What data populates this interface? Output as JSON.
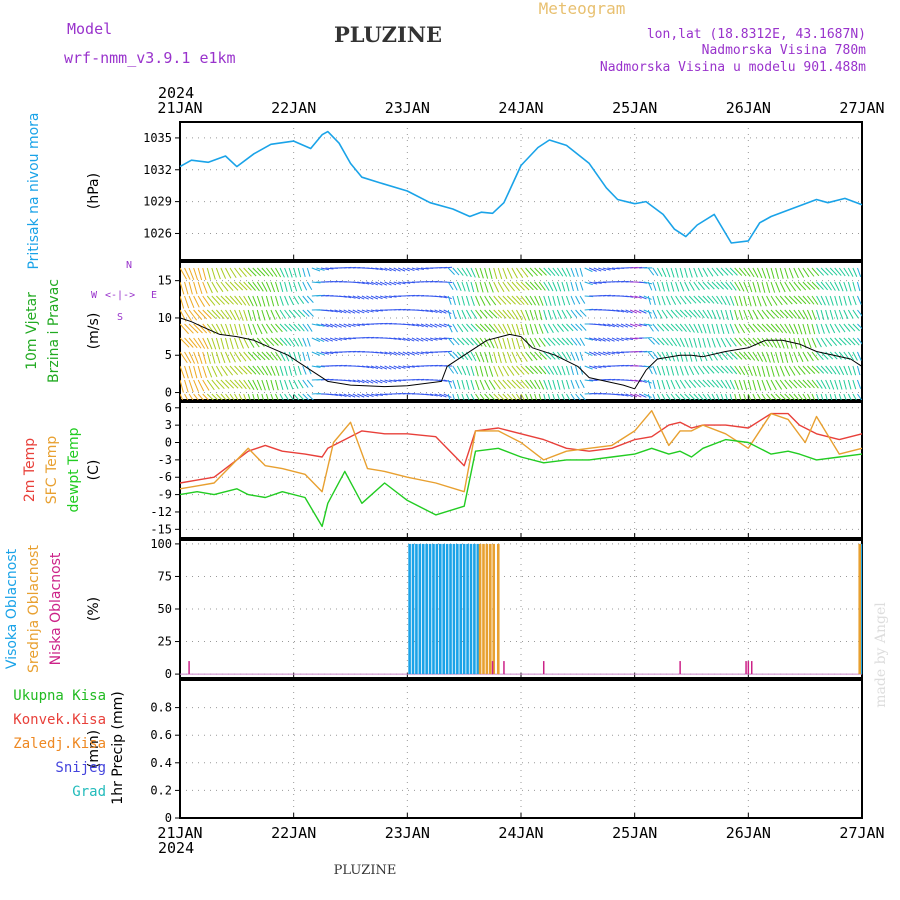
{
  "header": {
    "model_label": "Model",
    "model_name": "wrf-nmm_v3.9.1  e1km",
    "station": "PLUZINE",
    "meteogram": "Meteogram",
    "lonlat": "lon,lat (18.8312E, 43.1687N)",
    "elevation": "Nadmorska Visina 780m",
    "model_elevation": "Nadmorska Visina u modelu 901.488m",
    "year": "2024",
    "footer_station": "PLUZINE",
    "watermark": "made by Angel"
  },
  "colors": {
    "pressure": "#1aa3e8",
    "temp2m": "#e8403a",
    "sfc_temp": "#e8a030",
    "dewpt": "#22cc22",
    "high_cloud": "#1aa3e8",
    "mid_cloud": "#e8a030",
    "low_cloud": "#cc2288",
    "wind_title": "#22aa22",
    "compass": "#9933cc"
  },
  "chart_data": [
    {
      "type": "line",
      "panel": "pressure",
      "x_ticks": [
        "21JAN",
        "22JAN",
        "23JAN",
        "24JAN",
        "25JAN",
        "26JAN",
        "27JAN"
      ],
      "ylabel_lines": [
        "Pritisak na nivou mora"
      ],
      "unit": "(hPa)",
      "ylim": [
        1023.5,
        1036.5
      ],
      "y_ticks": [
        1026,
        1029,
        1032,
        1035
      ],
      "grid": true,
      "series": [
        {
          "name": "Pritisak na nivou mora",
          "x_days": [
            0,
            0.1,
            0.25,
            0.4,
            0.5,
            0.65,
            0.8,
            1.0,
            1.15,
            1.25,
            1.3,
            1.4,
            1.5,
            1.6,
            1.75,
            2.0,
            2.2,
            2.4,
            2.55,
            2.65,
            2.75,
            2.85,
            3.0,
            3.15,
            3.25,
            3.4,
            3.6,
            3.75,
            3.85,
            4.0,
            4.1,
            4.25,
            4.35,
            4.45,
            4.55,
            4.7,
            4.85,
            5.0,
            5.1,
            5.2,
            5.35,
            5.5,
            5.6,
            5.7,
            5.85,
            6.0
          ],
          "values": [
            1032.3,
            1032.9,
            1032.7,
            1033.3,
            1032.3,
            1033.5,
            1034.4,
            1034.7,
            1034.0,
            1035.3,
            1035.6,
            1034.5,
            1032.6,
            1031.3,
            1030.8,
            1030.0,
            1028.9,
            1028.3,
            1027.6,
            1028.0,
            1027.9,
            1028.9,
            1032.4,
            1034.1,
            1034.8,
            1034.3,
            1032.6,
            1030.3,
            1029.2,
            1028.8,
            1029.0,
            1027.8,
            1026.4,
            1025.7,
            1026.8,
            1027.8,
            1025.1,
            1025.3,
            1027.0,
            1027.6,
            1028.2,
            1028.8,
            1029.2,
            1028.9,
            1029.3,
            1028.7
          ]
        }
      ]
    },
    {
      "type": "line",
      "panel": "wind",
      "ylabel_lines": [
        "10m Vjetar",
        "Brzina i Pravac"
      ],
      "unit": "(m/s)",
      "ylim": [
        -1,
        17.5
      ],
      "y_ticks": [
        0,
        5,
        10,
        15
      ],
      "compass": {
        "north": "N",
        "east": "E",
        "west": "W",
        "south": "S",
        "arrow": "<-|->"
      },
      "grid": true,
      "series": [
        {
          "name": "10m Vjetar",
          "x_days": [
            0,
            0.1,
            0.2,
            0.35,
            0.5,
            0.65,
            0.8,
            0.95,
            1.0,
            1.1,
            1.25,
            1.3,
            1.5,
            1.8,
            2.0,
            2.3,
            2.35,
            2.5,
            2.7,
            2.9,
            3.0,
            3.1,
            3.3,
            3.5,
            3.6,
            3.75,
            3.9,
            4.0,
            4.1,
            4.2,
            4.4,
            4.5,
            4.6,
            4.8,
            5.0,
            5.15,
            5.3,
            5.45,
            5.6,
            5.75,
            5.9,
            6.0
          ],
          "values": [
            10,
            9.5,
            8.8,
            7.8,
            7.5,
            7,
            6,
            5,
            4.5,
            3.5,
            2,
            1.5,
            1,
            0.8,
            0.9,
            1.5,
            3.5,
            5,
            7,
            7.8,
            7.5,
            6,
            5,
            3.5,
            2,
            1.5,
            1,
            0.5,
            3,
            4.5,
            5,
            5,
            4.8,
            5.5,
            6,
            7,
            7,
            6.5,
            5.5,
            5,
            4.5,
            3.5
          ]
        }
      ]
    },
    {
      "type": "line",
      "panel": "temperature",
      "ylabel_lines": [
        "2m Temp",
        "SFC Temp",
        "dewpt Temp"
      ],
      "unit": "(C)",
      "ylim": [
        -16.5,
        7
      ],
      "y_ticks": [
        6,
        3,
        0,
        -3,
        -6,
        -9,
        -12,
        -15
      ],
      "grid": true,
      "series": [
        {
          "name": "2m Temp",
          "x_days": [
            0,
            0.15,
            0.3,
            0.5,
            0.6,
            0.75,
            0.9,
            1.1,
            1.25,
            1.3,
            1.45,
            1.6,
            1.8,
            2.0,
            2.25,
            2.5,
            2.6,
            2.8,
            3.0,
            3.2,
            3.4,
            3.6,
            3.8,
            4.0,
            4.15,
            4.3,
            4.4,
            4.5,
            4.6,
            4.8,
            5.0,
            5.2,
            5.35,
            5.45,
            5.6,
            5.8,
            6.0
          ],
          "values": [
            -7,
            -6.5,
            -6,
            -3,
            -1.5,
            -0.5,
            -1.5,
            -2,
            -2.5,
            -1,
            0.5,
            2,
            1.5,
            1.5,
            1,
            -4,
            2,
            2.5,
            1.5,
            0.5,
            -1,
            -1.5,
            -1,
            0.5,
            1,
            3,
            3.5,
            2.5,
            3,
            3,
            2.5,
            5,
            5,
            3,
            1.5,
            0.5,
            1.5
          ]
        },
        {
          "name": "SFC Temp",
          "x_days": [
            0,
            0.15,
            0.3,
            0.5,
            0.6,
            0.75,
            0.9,
            1.1,
            1.25,
            1.35,
            1.5,
            1.65,
            1.8,
            2.0,
            2.25,
            2.5,
            2.6,
            2.8,
            3.0,
            3.2,
            3.4,
            3.6,
            3.8,
            4.0,
            4.15,
            4.3,
            4.4,
            4.5,
            4.6,
            4.8,
            5.0,
            5.2,
            5.35,
            5.5,
            5.6,
            5.8,
            6.0
          ],
          "values": [
            -8,
            -7.5,
            -7,
            -3,
            -1,
            -4,
            -4.5,
            -5.5,
            -8.5,
            0,
            3.5,
            -4.5,
            -5,
            -6,
            -7,
            -8.5,
            2,
            2,
            0,
            -3,
            -1.5,
            -1,
            -0.5,
            2,
            5.5,
            -0.5,
            2,
            2,
            3,
            1.5,
            -1,
            5,
            4,
            0,
            4.5,
            -2,
            -1
          ]
        },
        {
          "name": "dewpt Temp",
          "x_days": [
            0,
            0.15,
            0.3,
            0.5,
            0.6,
            0.75,
            0.9,
            1.1,
            1.25,
            1.3,
            1.45,
            1.6,
            1.8,
            2.0,
            2.25,
            2.5,
            2.6,
            2.8,
            3.0,
            3.2,
            3.4,
            3.6,
            3.8,
            4.0,
            4.15,
            4.3,
            4.4,
            4.5,
            4.6,
            4.8,
            5.0,
            5.2,
            5.35,
            5.45,
            5.6,
            5.8,
            6.0
          ],
          "values": [
            -9,
            -8.5,
            -9,
            -8,
            -9,
            -9.5,
            -8.5,
            -9.5,
            -14.5,
            -10.5,
            -5,
            -10.5,
            -7,
            -10,
            -12.5,
            -11,
            -1.5,
            -1,
            -2.5,
            -3.5,
            -3,
            -3,
            -2.5,
            -2,
            -1,
            -2,
            -1.5,
            -2.5,
            -1,
            0.5,
            0,
            -2,
            -1.5,
            -2,
            -3,
            -2.5,
            -2
          ]
        }
      ]
    },
    {
      "type": "bar",
      "panel": "clouds",
      "ylabel_lines": [
        "Visoka Oblacnost",
        "Srednja Oblacnost",
        "Niska Oblacnost"
      ],
      "unit": "(%)",
      "ylim": [
        -3,
        103
      ],
      "y_ticks": [
        0,
        25,
        50,
        75,
        100
      ],
      "grid": true,
      "series": [
        {
          "name": "Visoka Oblacnost",
          "x_days": [
            2.02,
            2.05,
            2.08,
            2.11,
            2.14,
            2.17,
            2.2,
            2.23,
            2.26,
            2.29,
            2.32,
            2.35,
            2.38,
            2.41,
            2.44,
            2.47,
            2.5,
            2.53,
            2.56,
            2.59,
            2.62,
            5.99
          ],
          "values": [
            100,
            100,
            100,
            100,
            100,
            100,
            100,
            100,
            100,
            100,
            100,
            100,
            100,
            100,
            100,
            100,
            100,
            100,
            100,
            100,
            100,
            100
          ]
        },
        {
          "name": "Srednja Oblacnost",
          "x_days": [
            2.64,
            2.67,
            2.7,
            2.73,
            2.76,
            2.8,
            5.98
          ],
          "values": [
            100,
            100,
            100,
            100,
            100,
            100,
            100
          ]
        },
        {
          "name": "Niska Oblacnost",
          "x_days": [
            0.08,
            2.75,
            2.85,
            3.2,
            4.4,
            4.98,
            5.0,
            5.03
          ],
          "values": [
            10,
            10,
            10,
            10,
            10,
            10,
            10,
            10
          ]
        }
      ]
    },
    {
      "type": "bar",
      "panel": "precip",
      "ylabel_lines": [
        "1hr Precip"
      ],
      "unit": "(mm)",
      "legend": [
        "Ukupna  Kisa",
        "Konvek.Kisa",
        "Zaledj.Kisa",
        "Snijeg",
        "Grad"
      ],
      "ylim": [
        0,
        1
      ],
      "y_ticks": [
        0,
        0.2,
        0.4,
        0.6,
        0.8
      ],
      "grid": true,
      "series": [
        {
          "name": "Ukupna  Kisa",
          "values": []
        },
        {
          "name": "Konvek.Kisa",
          "values": []
        },
        {
          "name": "Zaledj.Kisa",
          "values": []
        },
        {
          "name": "Snijeg",
          "values": []
        },
        {
          "name": "Grad",
          "values": []
        }
      ]
    }
  ]
}
